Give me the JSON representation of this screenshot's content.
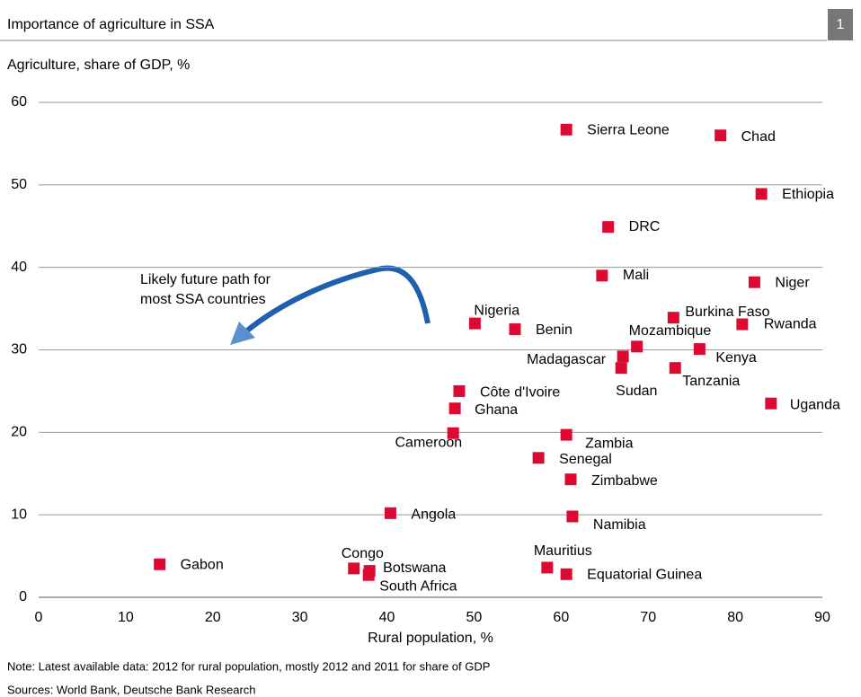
{
  "chart_data": {
    "type": "scatter",
    "title": "Importance of agriculture in SSA",
    "badge": "1",
    "y_label": "Agriculture, share of GDP, %",
    "x_label": "Rural population,  %",
    "note": "Note: Latest available data: 2012 for rural population, mostly 2012 and 2011 for share of GDP",
    "sources": "Sources: World Bank, Deutsche Bank Research",
    "annotation": [
      "Likely future path for",
      "most SSA countries"
    ],
    "color": "#dc0a32",
    "grid": true,
    "xlim": [
      0,
      90
    ],
    "xticks": [
      0,
      10,
      20,
      30,
      40,
      50,
      60,
      70,
      80,
      90
    ],
    "ylim": [
      0,
      60
    ],
    "yticks": [
      0,
      10,
      20,
      30,
      40,
      50,
      60
    ],
    "labels": [
      "Sierra Leone",
      "Chad",
      "Ethiopia",
      "DRC",
      "Mali",
      "Niger",
      "Nigeria",
      "Benin",
      "Burkina Faso",
      "Rwanda",
      "Mozambique",
      "Madagascar",
      "Sudan",
      "Kenya",
      "Tanzania",
      "Uganda",
      "Côte d'Ivoire",
      "Ghana",
      "Cameroon",
      "Zambia",
      "Senegal",
      "Zimbabwe",
      "Angola",
      "Namibia",
      "Gabon",
      "Congo",
      "Botswana",
      "South Africa",
      "Mauritius",
      "Equatorial Guinea"
    ],
    "x": [
      60.6,
      78.3,
      83.0,
      65.4,
      64.7,
      82.2,
      50.1,
      54.7,
      72.9,
      80.8,
      68.7,
      67.1,
      66.9,
      75.9,
      73.1,
      84.1,
      48.3,
      47.8,
      47.6,
      60.6,
      57.4,
      61.1,
      40.4,
      61.3,
      13.9,
      36.2,
      38.0,
      37.9,
      58.4,
      60.6
    ],
    "values": [
      56.7,
      56.0,
      48.9,
      44.9,
      39.0,
      38.2,
      33.2,
      32.5,
      33.9,
      33.1,
      30.4,
      29.2,
      27.8,
      30.1,
      27.8,
      23.5,
      25.0,
      22.9,
      19.9,
      19.7,
      16.9,
      14.3,
      10.2,
      9.8,
      4.0,
      3.5,
      3.2,
      2.7,
      3.6,
      2.8
    ]
  }
}
